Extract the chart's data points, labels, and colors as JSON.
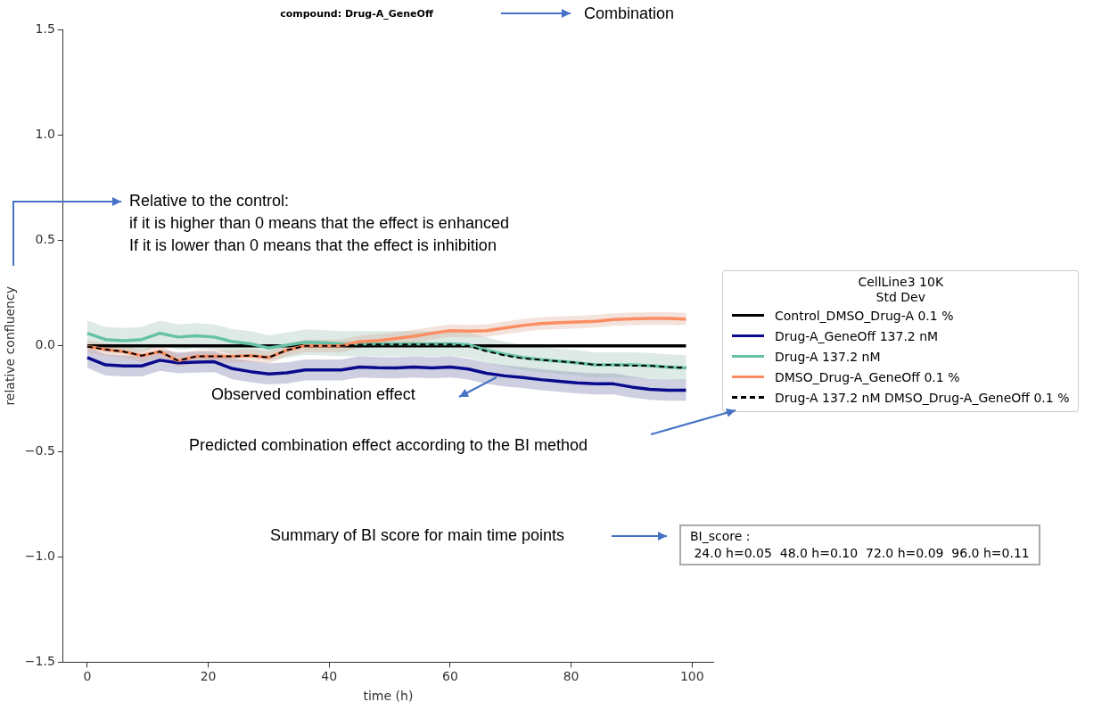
{
  "chart_data": {
    "type": "line",
    "title": "compound: Drug-A_GeneOff",
    "xlabel": "time (h)",
    "ylabel": "relative confluency",
    "legend_title": "CellLine3 10K\nStd Dev",
    "legend": "right",
    "grid": false,
    "marker": "none",
    "x": [
      0,
      3,
      6,
      9,
      12,
      15,
      18,
      21,
      24,
      27,
      30,
      33,
      36,
      39,
      42,
      45,
      48,
      51,
      54,
      57,
      60,
      63,
      66,
      69,
      72,
      75,
      78,
      81,
      84,
      87,
      90,
      93,
      96,
      99
    ],
    "xlim": [
      -4,
      103.5
    ],
    "xticks": [
      0,
      20,
      40,
      60,
      80,
      100
    ],
    "ylim": [
      -1.5,
      1.5
    ],
    "yticks": [
      {
        "value": -1.5,
        "label": "−1.5"
      },
      {
        "value": -1.0,
        "label": "−1.0"
      },
      {
        "value": -0.5,
        "label": "−0.5"
      },
      {
        "value": 0,
        "label": "0.0"
      },
      {
        "value": 0.5,
        "label": "0.5"
      },
      {
        "value": 1.0,
        "label": "1.0"
      },
      {
        "value": 1.5,
        "label": "1.5"
      }
    ],
    "series": [
      {
        "name": "Control_DMSO_Drug-A 0.1 %",
        "color": "#000000",
        "line_style": "solid",
        "values": [
          0,
          0,
          0,
          0,
          0,
          0,
          0,
          0,
          0,
          0,
          0,
          0,
          0,
          0,
          0,
          0,
          0,
          0,
          0,
          0,
          0,
          0,
          0,
          0,
          0,
          0,
          0,
          0,
          0,
          0,
          0,
          0,
          0,
          0
        ]
      },
      {
        "name": "Drug-A_GeneOff 137.2 nM",
        "color": "#0a0a8c",
        "line_style": "solid",
        "values": [
          -0.055,
          -0.09,
          -0.095,
          -0.095,
          -0.068,
          -0.08,
          -0.077,
          -0.075,
          -0.108,
          -0.122,
          -0.133,
          -0.128,
          -0.114,
          -0.114,
          -0.114,
          -0.1,
          -0.103,
          -0.104,
          -0.1,
          -0.104,
          -0.1,
          -0.11,
          -0.13,
          -0.142,
          -0.15,
          -0.16,
          -0.168,
          -0.175,
          -0.18,
          -0.18,
          -0.195,
          -0.206,
          -0.21,
          -0.21
        ],
        "upper": [
          -0.005,
          -0.04,
          -0.045,
          -0.045,
          -0.018,
          -0.03,
          -0.027,
          -0.025,
          -0.058,
          -0.072,
          -0.083,
          -0.078,
          -0.064,
          -0.064,
          -0.064,
          -0.05,
          -0.053,
          -0.054,
          -0.05,
          -0.054,
          -0.05,
          -0.06,
          -0.08,
          -0.092,
          -0.1,
          -0.11,
          -0.118,
          -0.125,
          -0.13,
          -0.13,
          -0.145,
          -0.156,
          -0.16,
          -0.16
        ],
        "lower": [
          -0.105,
          -0.14,
          -0.145,
          -0.145,
          -0.118,
          -0.13,
          -0.127,
          -0.125,
          -0.158,
          -0.172,
          -0.183,
          -0.178,
          -0.164,
          -0.164,
          -0.164,
          -0.15,
          -0.153,
          -0.154,
          -0.15,
          -0.154,
          -0.15,
          -0.16,
          -0.18,
          -0.192,
          -0.2,
          -0.21,
          -0.218,
          -0.225,
          -0.23,
          -0.23,
          -0.245,
          -0.256,
          -0.26,
          -0.26
        ]
      },
      {
        "name": "Drug-A 137.2 nM",
        "color": "#66c2a5",
        "line_style": "solid",
        "values": [
          0.06,
          0.03,
          0.025,
          0.03,
          0.06,
          0.042,
          0.048,
          0.042,
          0.02,
          0.01,
          -0.01,
          0.004,
          0.017,
          0.015,
          0.01,
          0.01,
          0.01,
          0.01,
          0.01,
          0.01,
          0.01,
          0.005,
          -0.02,
          -0.04,
          -0.055,
          -0.065,
          -0.073,
          -0.08,
          -0.09,
          -0.09,
          -0.09,
          -0.094,
          -0.1,
          -0.104
        ],
        "upper": [
          0.12,
          0.09,
          0.085,
          0.09,
          0.12,
          0.102,
          0.108,
          0.102,
          0.08,
          0.07,
          0.05,
          0.064,
          0.077,
          0.075,
          0.07,
          0.07,
          0.07,
          0.07,
          0.07,
          0.07,
          0.07,
          0.065,
          0.04,
          0.02,
          0.005,
          -0.005,
          -0.013,
          -0.02,
          -0.03,
          -0.03,
          -0.03,
          -0.034,
          -0.04,
          -0.044
        ],
        "lower": [
          0,
          -0.03,
          -0.035,
          -0.03,
          0,
          -0.018,
          -0.012,
          -0.018,
          -0.04,
          -0.05,
          -0.07,
          -0.056,
          -0.043,
          -0.045,
          -0.05,
          -0.05,
          -0.05,
          -0.05,
          -0.05,
          -0.05,
          -0.05,
          -0.055,
          -0.08,
          -0.1,
          -0.115,
          -0.125,
          -0.133,
          -0.14,
          -0.15,
          -0.15,
          -0.15,
          -0.154,
          -0.16,
          -0.164
        ]
      },
      {
        "name": "DMSO_Drug-A_GeneOff 0.1 %",
        "color": "#fc8d62",
        "line_style": "solid",
        "values": [
          -0.003,
          -0.017,
          -0.027,
          -0.046,
          -0.027,
          -0.07,
          -0.05,
          -0.05,
          -0.05,
          -0.046,
          -0.055,
          -0.02,
          0,
          0,
          0,
          0.02,
          0.025,
          0.035,
          0.046,
          0.06,
          0.072,
          0.07,
          0.072,
          0.085,
          0.097,
          0.106,
          0.11,
          0.113,
          0.117,
          0.125,
          0.128,
          0.13,
          0.13,
          0.127
        ],
        "upper": [
          0.027,
          0.013,
          0.003,
          -0.016,
          0.003,
          -0.04,
          -0.02,
          -0.02,
          -0.02,
          -0.016,
          -0.025,
          0.01,
          0.03,
          0.03,
          0.03,
          0.05,
          0.055,
          0.065,
          0.076,
          0.09,
          0.102,
          0.1,
          0.102,
          0.115,
          0.127,
          0.136,
          0.14,
          0.143,
          0.147,
          0.155,
          0.158,
          0.16,
          0.16,
          0.157
        ],
        "lower": [
          -0.033,
          -0.047,
          -0.057,
          -0.076,
          -0.057,
          -0.1,
          -0.08,
          -0.08,
          -0.08,
          -0.076,
          -0.085,
          -0.05,
          -0.03,
          -0.03,
          -0.03,
          -0.01,
          -0.005,
          0.005,
          0.016,
          0.03,
          0.042,
          0.04,
          0.042,
          0.055,
          0.067,
          0.076,
          0.08,
          0.083,
          0.087,
          0.095,
          0.098,
          0.1,
          0.1,
          0.097
        ]
      },
      {
        "name": "Drug-A 137.2 nM DMSO_Drug-A_GeneOff 0.1 %",
        "color": "#000000",
        "line_style": "dashed",
        "values": [
          -0.003,
          -0.017,
          -0.027,
          -0.046,
          -0.027,
          -0.07,
          -0.05,
          -0.05,
          -0.05,
          -0.046,
          -0.055,
          -0.02,
          0,
          0,
          0,
          0.005,
          0.007,
          0.007,
          0.007,
          0.007,
          0.007,
          0,
          -0.025,
          -0.045,
          -0.059,
          -0.066,
          -0.073,
          -0.08,
          -0.09,
          -0.09,
          -0.094,
          -0.094,
          -0.1,
          -0.104
        ]
      }
    ],
    "annotations": [
      "Combination",
      "Relative to the control:\nif it is higher than 0 means that the effect is enhanced\nIf it is lower than 0 means that the effect is inhibition",
      "Observed combination effect",
      "Predicted combination effect according to the BI method",
      "Summary of BI score for main time points",
      "BI_score :\n 24.0 h=0.05  48.0 h=0.10  72.0 h=0.09  96.0 h=0.11"
    ]
  }
}
